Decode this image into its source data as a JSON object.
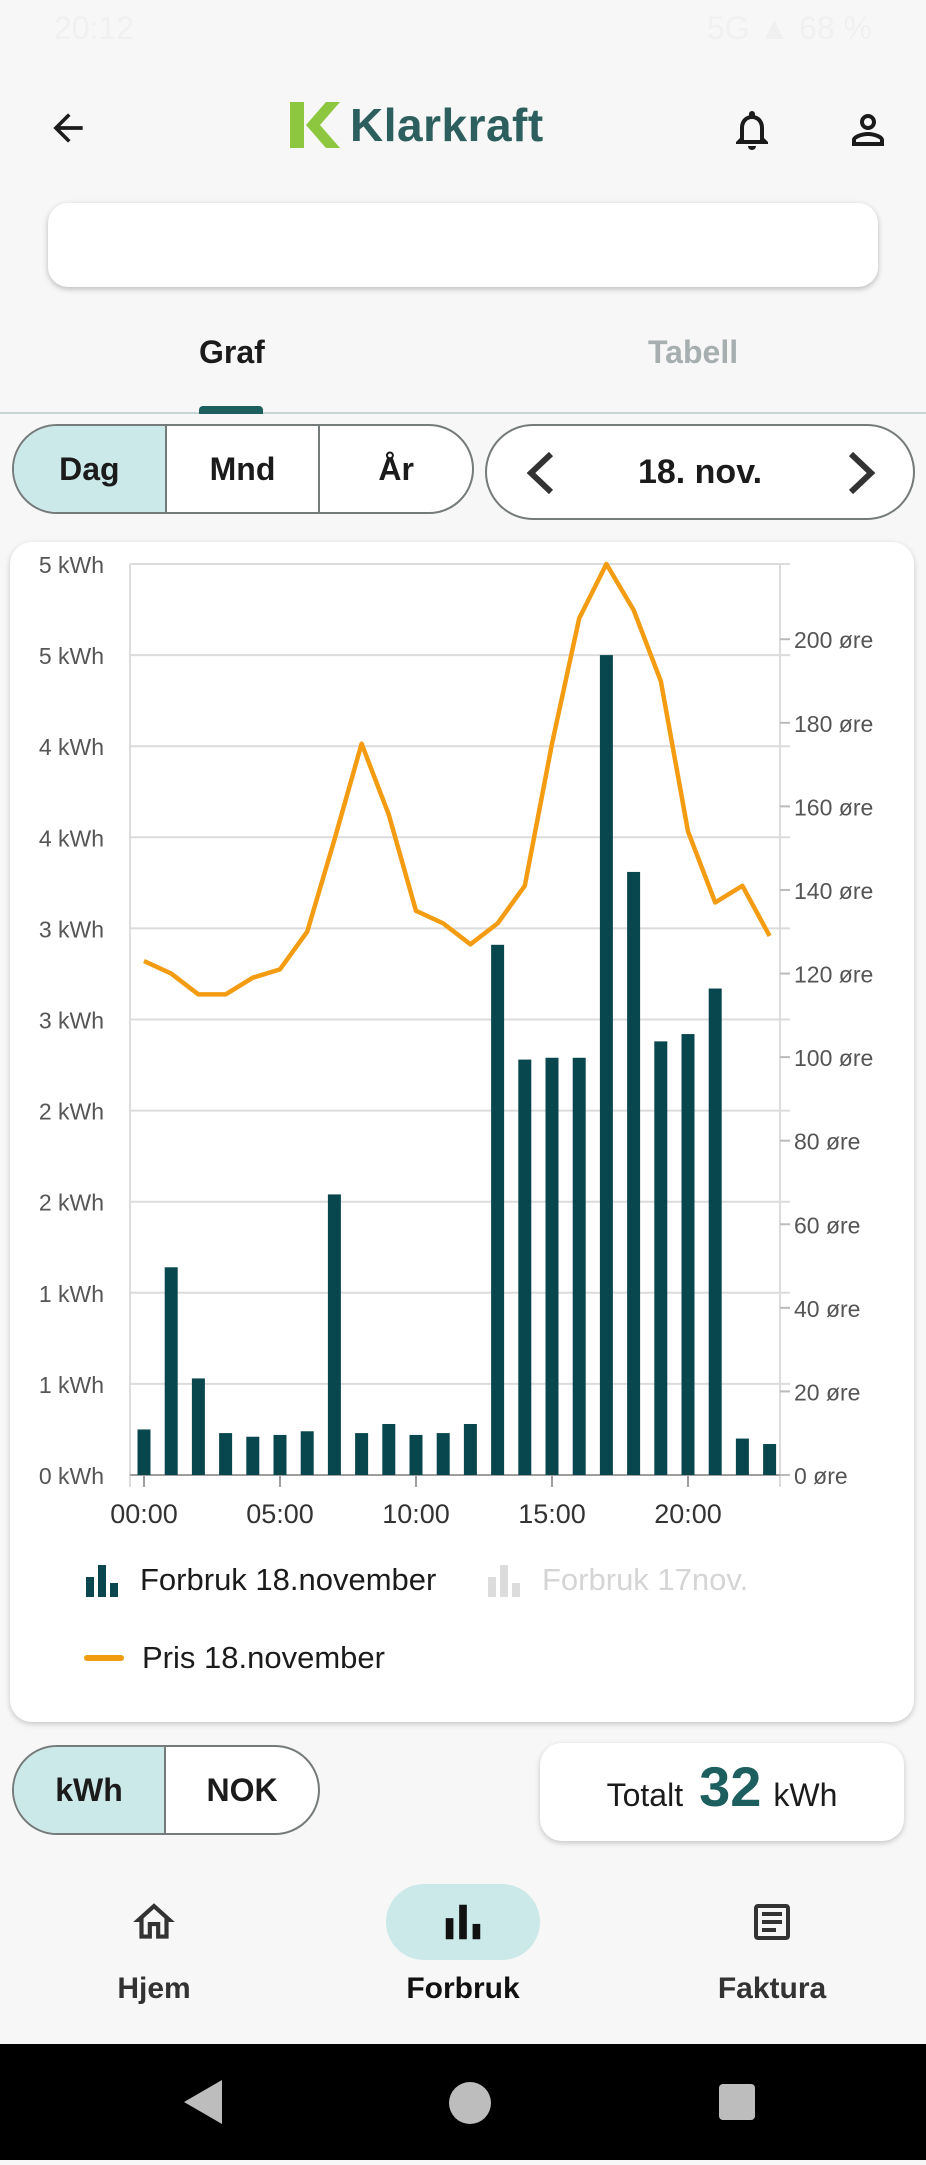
{
  "status_bar": {
    "time": "20:12",
    "right": "5G ▲ 68 %"
  },
  "header": {
    "brand": "Klarkraft",
    "back_icon": "back-arrow-icon",
    "bell_icon": "bell-icon",
    "profile_icon": "user-icon",
    "brand_color": "#2c5f5d",
    "logo_color": "#8dc63f"
  },
  "address": {
    "value": ""
  },
  "tabs": {
    "graph": "Graf",
    "table": "Tabell"
  },
  "period": {
    "day": "Dag",
    "month": "Mnd",
    "year": "År",
    "selected": "Dag"
  },
  "date_nav": {
    "label": "18. nov."
  },
  "chart_data": {
    "type": "bar",
    "x": [
      "00",
      "01",
      "02",
      "03",
      "04",
      "05",
      "06",
      "07",
      "08",
      "09",
      "10",
      "11",
      "12",
      "13",
      "14",
      "15",
      "16",
      "17",
      "18",
      "19",
      "20",
      "21",
      "22",
      "23"
    ],
    "x_tick_labels": [
      "00:00",
      "05:00",
      "10:00",
      "15:00",
      "20:00"
    ],
    "y_tick_labels": [
      "0 kWh",
      "1 kWh",
      "1 kWh",
      "2 kWh",
      "2 kWh",
      "3 kWh",
      "3 kWh",
      "4 kWh",
      "4 kWh",
      "5 kWh",
      "5 kWh"
    ],
    "ylim": [
      0,
      5
    ],
    "y2_tick_labels": [
      "0 øre",
      "20 øre",
      "40 øre",
      "60 øre",
      "80 øre",
      "100 øre",
      "120 øre",
      "140 øre",
      "160 øre",
      "180 øre",
      "200 øre"
    ],
    "y2lim": [
      0,
      218
    ],
    "series": [
      {
        "name": "Forbruk 18.november",
        "type": "bar",
        "color": "#08474d",
        "values": [
          0.25,
          1.14,
          0.53,
          0.23,
          0.21,
          0.22,
          0.24,
          1.54,
          0.23,
          0.28,
          0.22,
          0.23,
          0.28,
          2.91,
          2.28,
          2.29,
          2.29,
          4.5,
          3.31,
          2.38,
          2.42,
          2.67,
          0.2,
          0.17
        ]
      },
      {
        "name": "Forbruk 17nov.",
        "type": "bar",
        "color": "#d9d9d9",
        "visible": false
      },
      {
        "name": "Pris 18.november",
        "type": "line",
        "color": "#f39c12",
        "values": [
          123,
          120,
          115,
          115,
          119,
          121,
          130,
          152,
          175,
          158,
          135,
          132,
          127,
          132,
          141,
          175,
          205,
          218,
          207,
          190,
          154,
          137,
          141,
          129
        ]
      }
    ],
    "grid": true
  },
  "unit_toggle": {
    "kwh": "kWh",
    "nok": "NOK",
    "selected": "kWh"
  },
  "total": {
    "label": "Totalt",
    "value": "32",
    "unit": "kWh",
    "value_color": "#1d5e5e"
  },
  "bottom_nav": {
    "home": "Hjem",
    "usage": "Forbruk",
    "invoice": "Faktura",
    "selected": "Forbruk"
  }
}
